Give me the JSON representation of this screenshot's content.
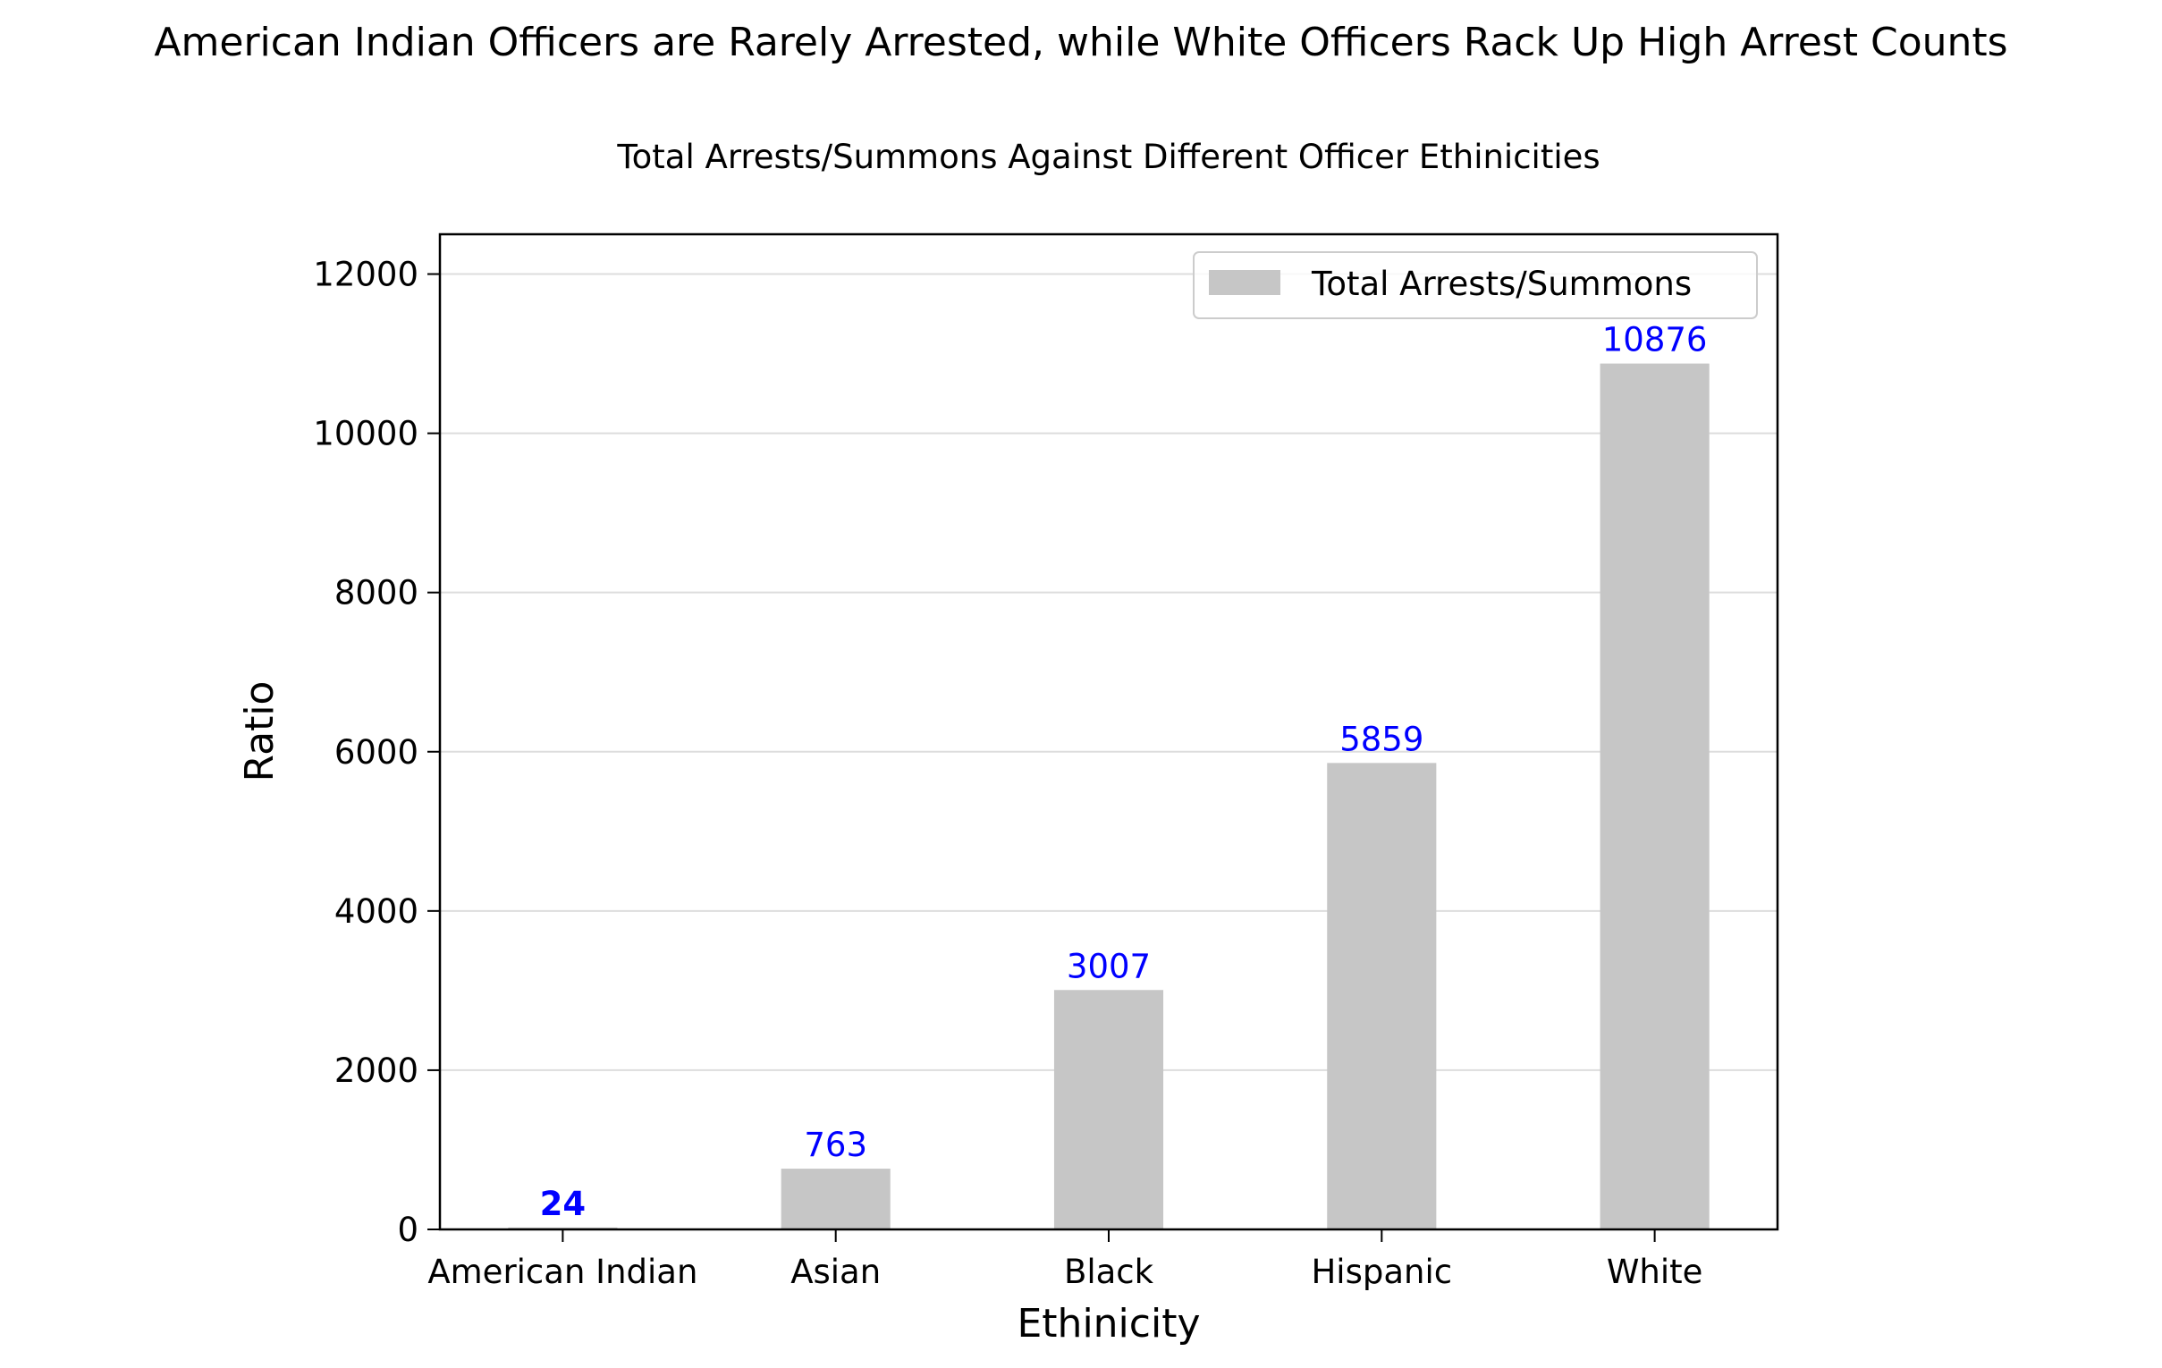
{
  "chart_data": {
    "type": "bar",
    "suptitle": "American Indian Officers are Rarely Arrested, while White Officers Rack Up High Arrest Counts",
    "title": "Total Arrests/Summons Against Different Officer Ethinicities",
    "xlabel": "Ethinicity",
    "ylabel": "Ratio",
    "categories": [
      "American Indian",
      "Asian",
      "Black",
      "Hispanic",
      "White"
    ],
    "series": [
      {
        "name": "Total Arrests/Summons",
        "values": [
          24,
          763,
          3007,
          5859,
          10876
        ],
        "color": "#c6c6c6"
      }
    ],
    "data_labels": [
      "24",
      "763",
      "3007",
      "5859",
      "10876"
    ],
    "data_label_color": "#0000ff",
    "bold_label_index": 0,
    "ylim": [
      0,
      12500
    ],
    "yticks": [
      0,
      2000,
      4000,
      6000,
      8000,
      10000,
      12000
    ],
    "ytick_labels": [
      "0",
      "2000",
      "4000",
      "6000",
      "8000",
      "10000",
      "12000"
    ],
    "grid": "y",
    "legend_position": "upper right"
  }
}
